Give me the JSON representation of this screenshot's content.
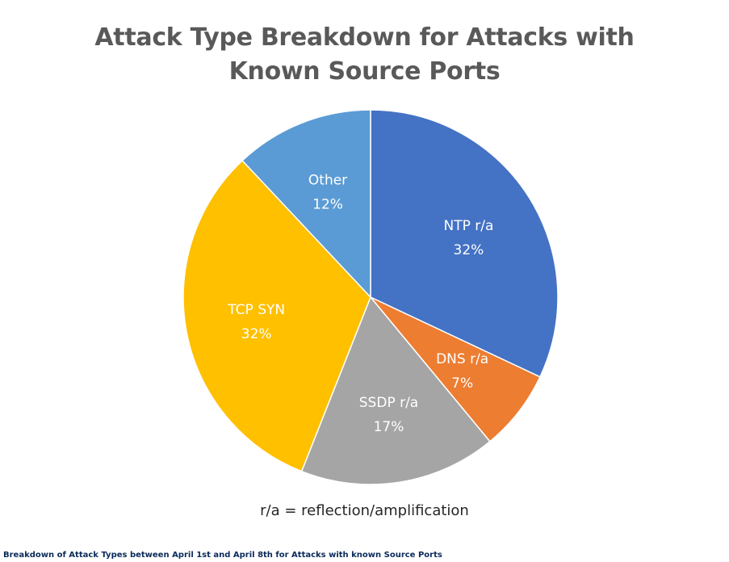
{
  "chart_data": {
    "type": "pie",
    "title_lines": [
      "Attack Type Breakdown for Attacks with",
      "Known Source Ports"
    ],
    "slices": [
      {
        "label": "NTP r/a",
        "value": 32,
        "value_label": "32%",
        "color": "#4472C4"
      },
      {
        "label": "DNS r/a",
        "value": 7,
        "value_label": "7%",
        "color": "#ED7D31"
      },
      {
        "label": "SSDP r/a",
        "value": 17,
        "value_label": "17%",
        "color": "#A5A5A5"
      },
      {
        "label": "TCP SYN",
        "value": 32,
        "value_label": "32%",
        "color": "#FFC000"
      },
      {
        "label": "Other",
        "value": 12,
        "value_label": "12%",
        "color": "#5B9BD5"
      }
    ],
    "start": "12 o'clock",
    "direction": "clockwise"
  },
  "footnote": "r/a = reflection/amplification",
  "caption": "Breakdown of Attack Types between April 1st and April 8th for Attacks with known Source Ports"
}
